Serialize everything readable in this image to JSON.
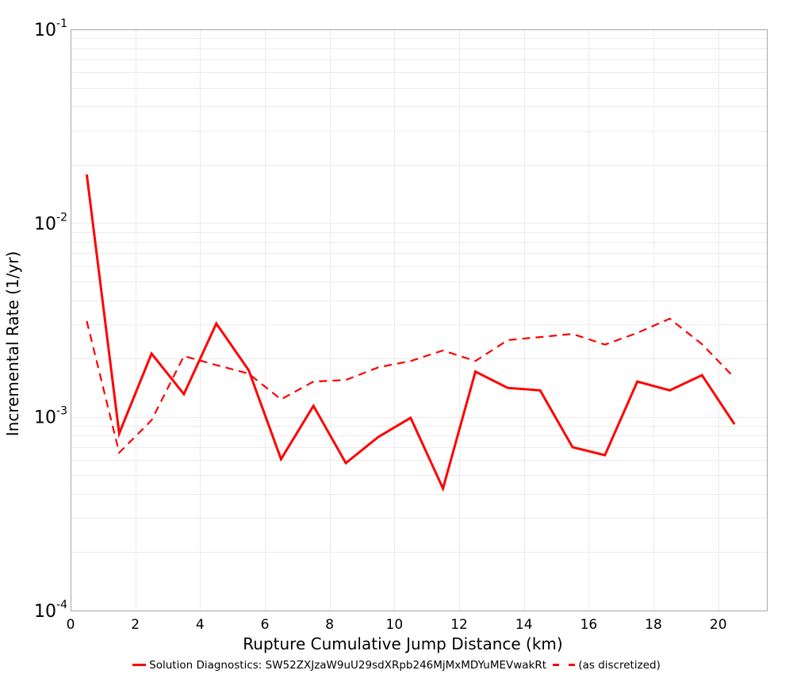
{
  "chart_data": {
    "type": "line",
    "title": "",
    "xlabel": "Rupture Cumulative Jump Distance (km)",
    "ylabel": "Incremental Rate (1/yr)",
    "xlim": [
      0,
      21.5
    ],
    "ylim": [
      0.0001,
      0.1
    ],
    "yscale": "log",
    "grid": true,
    "legend_position": "bottom",
    "x_ticks": [
      0,
      2,
      4,
      6,
      8,
      10,
      12,
      14,
      16,
      18,
      20
    ],
    "y_ticks": [
      {
        "base": "10",
        "exp": "-1",
        "value": 0.1
      },
      {
        "base": "10",
        "exp": "-2",
        "value": 0.01
      },
      {
        "base": "10",
        "exp": "-3",
        "value": 0.001
      },
      {
        "base": "10",
        "exp": "-4",
        "value": 0.0001
      }
    ],
    "x": [
      0.5,
      1.5,
      2.5,
      3.5,
      4.5,
      5.5,
      6.5,
      7.5,
      8.5,
      9.5,
      10.5,
      11.5,
      12.5,
      13.5,
      14.5,
      15.5,
      16.5,
      17.5,
      18.5,
      19.5,
      20.5
    ],
    "series": [
      {
        "name": "Solution Diagnostics: SW52ZXJzaW9uU29sdXRpb246MjMxMDYuMEVwakRt",
        "style": "solid",
        "color": "#ff0000",
        "values": [
          0.0178,
          0.00082,
          0.00212,
          0.00131,
          0.00303,
          0.00174,
          0.000605,
          0.00114,
          0.000577,
          0.000787,
          0.000988,
          0.000427,
          0.00171,
          0.00141,
          0.00137,
          0.000697,
          0.000634,
          0.00152,
          0.00137,
          0.00164,
          0.000916
        ]
      },
      {
        "name": "(as discretized)",
        "style": "dashed",
        "color": "#ff0000",
        "values": [
          0.00312,
          0.000653,
          0.00096,
          0.00206,
          0.00185,
          0.00167,
          0.00123,
          0.00152,
          0.00155,
          0.0018,
          0.00194,
          0.0022,
          0.00194,
          0.00249,
          0.00258,
          0.00268,
          0.00236,
          0.00271,
          0.00321,
          0.00237,
          0.00159
        ]
      }
    ]
  },
  "legend": {
    "items": [
      {
        "label": "Solution Diagnostics: SW52ZXJzaW9uU29sdXRpb246MjMxMDYuMEVwakRt",
        "style": "solid"
      },
      {
        "label": "(as discretized)",
        "style": "dashed"
      }
    ]
  },
  "colors": {
    "series": "#ff0000",
    "grid": "#ebebeb",
    "axis": "#a8a8a8"
  }
}
